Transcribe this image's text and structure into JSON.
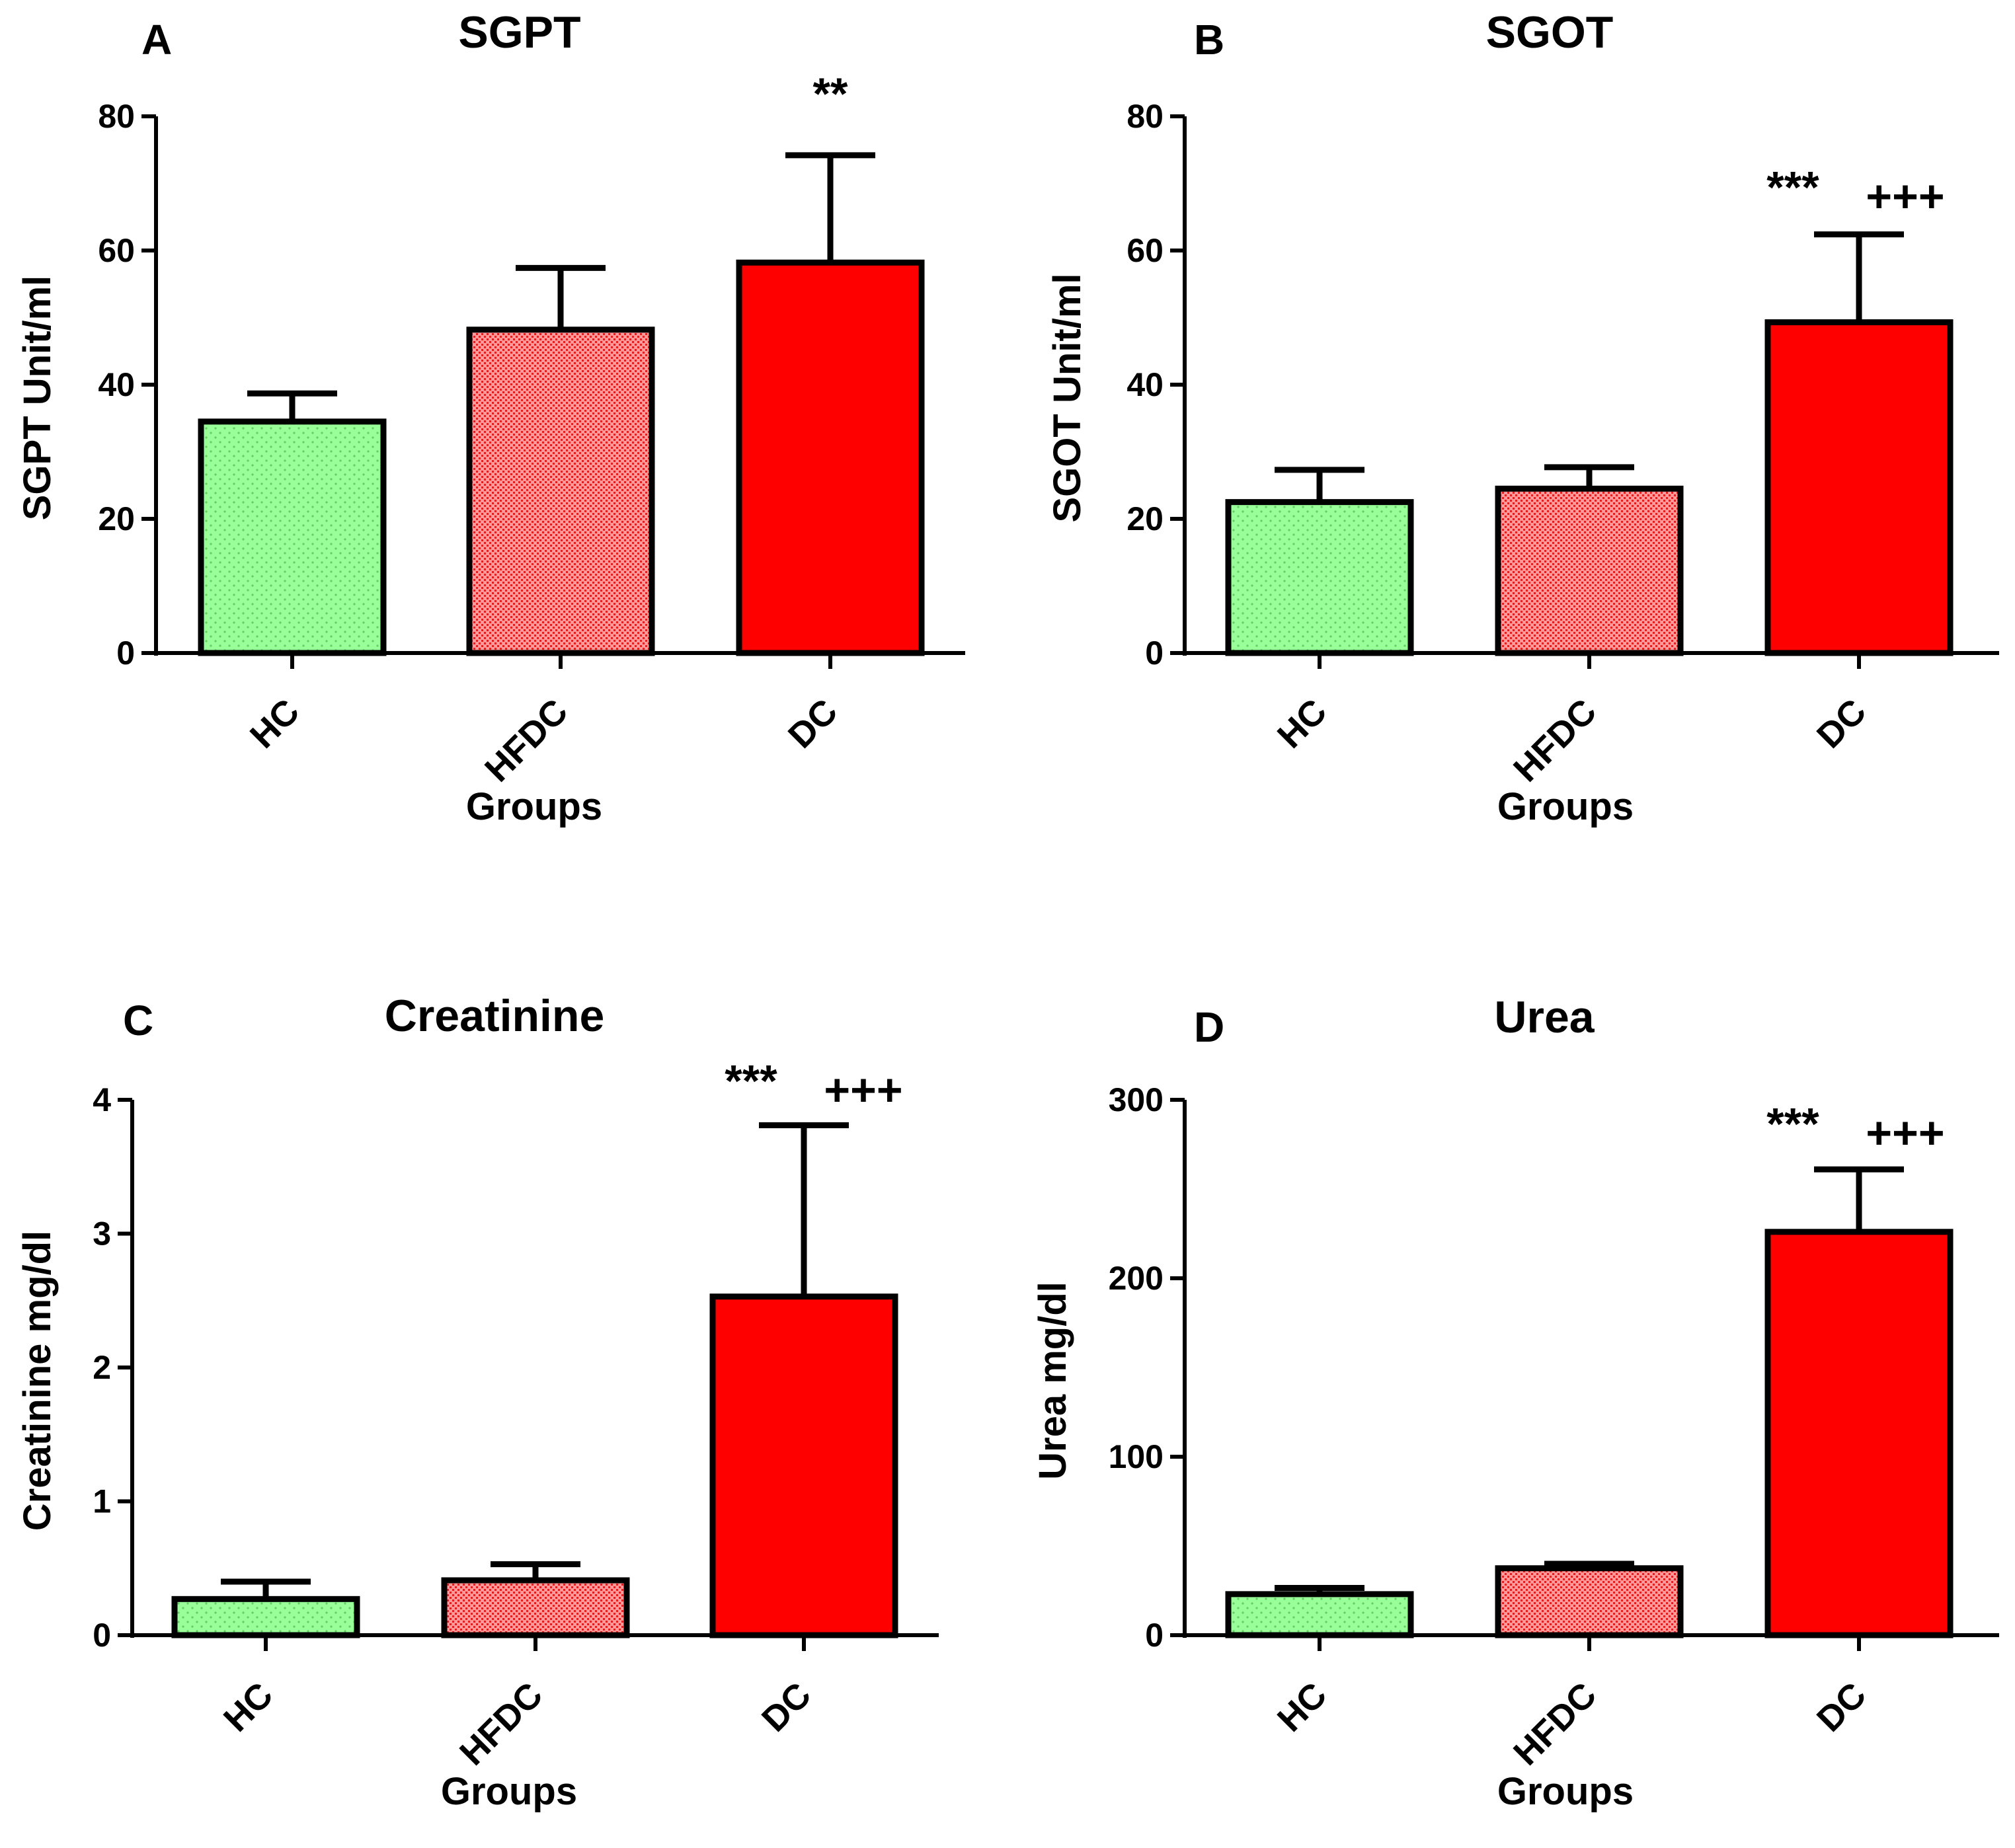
{
  "colors": {
    "hc": "#99ff99",
    "hfdc": "#ff9999",
    "dc": "#ff0000",
    "axis": "#000000"
  },
  "chart_data": [
    {
      "type": "bar",
      "panel": "A",
      "title": "SGPT",
      "xlabel": "Groups",
      "ylabel": "SGPT Unit/ml",
      "ylim": [
        0,
        80
      ],
      "yticks": [
        "0",
        "20",
        "40",
        "60",
        "80"
      ],
      "categories": [
        "HC",
        "HFDC",
        "DC"
      ],
      "values": [
        34.5,
        48.2,
        58.2
      ],
      "errors": [
        4.2,
        9.2,
        16.0
      ],
      "annotations": [
        "",
        "",
        "**"
      ]
    },
    {
      "type": "bar",
      "panel": "B",
      "title": "SGOT",
      "xlabel": "Groups",
      "ylabel": "SGOT Unit/ml",
      "ylim": [
        0,
        80
      ],
      "yticks": [
        "0",
        "20",
        "40",
        "60",
        "80"
      ],
      "categories": [
        "HC",
        "HFDC",
        "DC"
      ],
      "values": [
        22.5,
        24.5,
        49.3
      ],
      "errors": [
        4.8,
        3.2,
        13.1
      ],
      "annotations": [
        "",
        "",
        "***  +++"
      ]
    },
    {
      "type": "bar",
      "panel": "C",
      "title": "Creatinine",
      "xlabel": "Groups",
      "ylabel": "Creatinine mg/dl",
      "ylim": [
        0,
        4
      ],
      "yticks": [
        "0",
        "1",
        "2",
        "3",
        "4"
      ],
      "categories": [
        "HC",
        "HFDC",
        "DC"
      ],
      "values": [
        0.27,
        0.41,
        2.53
      ],
      "errors": [
        0.13,
        0.12,
        1.28
      ],
      "annotations": [
        "",
        "",
        "***  +++"
      ]
    },
    {
      "type": "bar",
      "panel": "D",
      "title": "Urea",
      "xlabel": "Groups",
      "ylabel": "Urea mg/dl",
      "ylim": [
        0,
        300
      ],
      "yticks": [
        "0",
        "100",
        "200",
        "300"
      ],
      "categories": [
        "HC",
        "HFDC",
        "DC"
      ],
      "values": [
        23,
        37.5,
        226
      ],
      "errors": [
        3.5,
        2.5,
        35
      ],
      "annotations": [
        "",
        "",
        "***  +++"
      ]
    }
  ]
}
